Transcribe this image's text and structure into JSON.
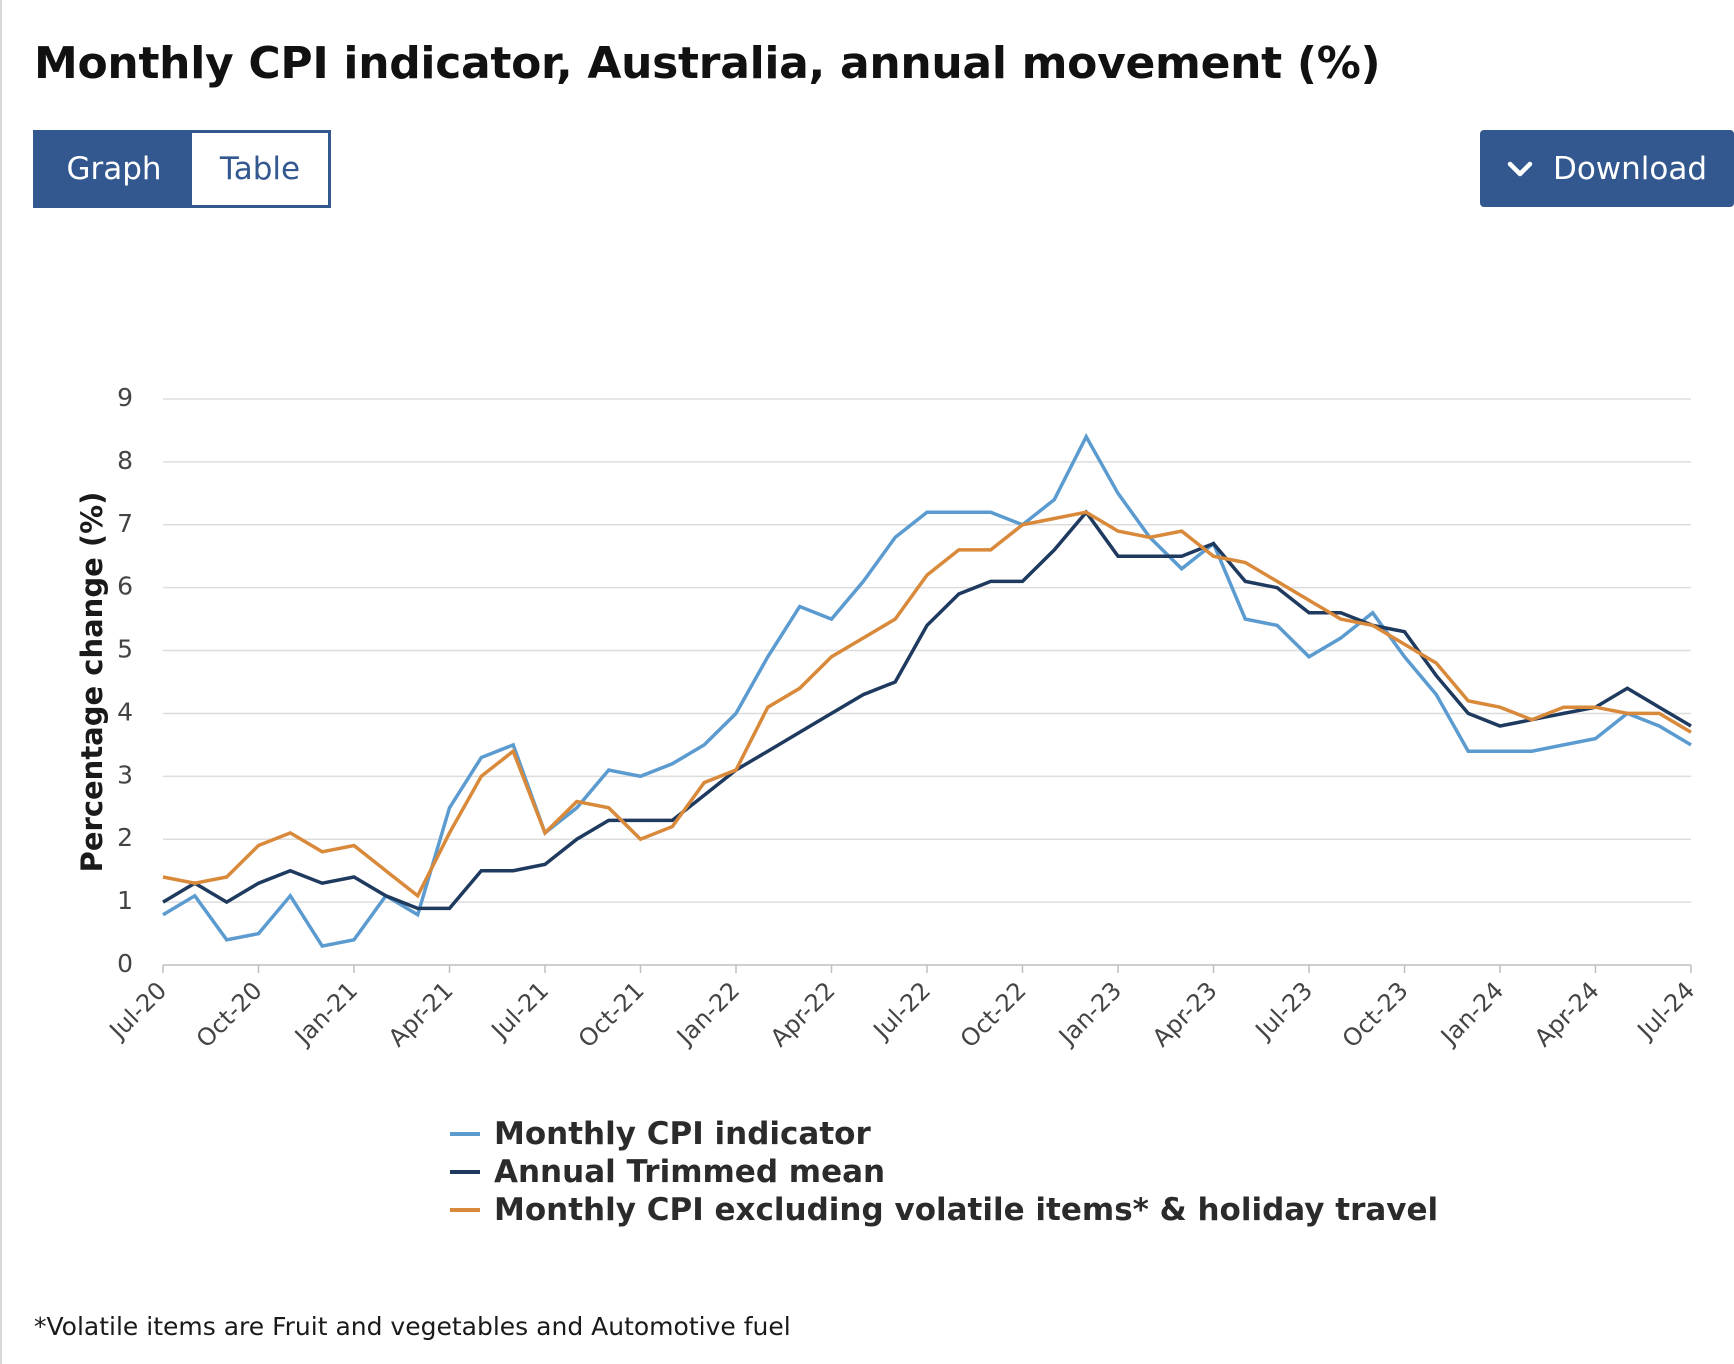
{
  "header": {
    "title": "Monthly CPI indicator, Australia, annual movement (%)"
  },
  "tabs": [
    {
      "label": "Graph",
      "selected": true
    },
    {
      "label": "Table",
      "selected": false
    }
  ],
  "toolbar": {
    "download_label": "Download",
    "download_icon": "chevron-down-icon"
  },
  "colors": {
    "accent": "#33588f",
    "series_light_blue": "#5b9bd0",
    "series_navy": "#1f3a5f",
    "series_orange": "#d9893a",
    "grid": "#dddddd"
  },
  "footnote": "*Volatile items are Fruit and vegetables and Automotive fuel",
  "chart_data": {
    "type": "line",
    "title": "Monthly CPI indicator, Australia, annual movement (%)",
    "xlabel": "",
    "ylabel": "Percentage change (%)",
    "ylim": [
      0,
      9
    ],
    "yticks": [
      0,
      1,
      2,
      3,
      4,
      5,
      6,
      7,
      8,
      9
    ],
    "grid": true,
    "legend_position": "bottom-center",
    "x": [
      "Jul-20",
      "Aug-20",
      "Sep-20",
      "Oct-20",
      "Nov-20",
      "Dec-20",
      "Jan-21",
      "Feb-21",
      "Mar-21",
      "Apr-21",
      "May-21",
      "Jun-21",
      "Jul-21",
      "Aug-21",
      "Sep-21",
      "Oct-21",
      "Nov-21",
      "Dec-21",
      "Jan-22",
      "Feb-22",
      "Mar-22",
      "Apr-22",
      "May-22",
      "Jun-22",
      "Jul-22",
      "Aug-22",
      "Sep-22",
      "Oct-22",
      "Nov-22",
      "Dec-22",
      "Jan-23",
      "Feb-23",
      "Mar-23",
      "Apr-23",
      "May-23",
      "Jun-23",
      "Jul-23",
      "Aug-23",
      "Sep-23",
      "Oct-23",
      "Nov-23",
      "Dec-23",
      "Jan-24",
      "Feb-24",
      "Mar-24",
      "Apr-24",
      "May-24",
      "Jun-24",
      "Jul-24"
    ],
    "xtick_labels": [
      "Jul-20",
      "Oct-20",
      "Jan-21",
      "Apr-21",
      "Jul-21",
      "Oct-21",
      "Jan-22",
      "Apr-22",
      "Jul-22",
      "Oct-22",
      "Jan-23",
      "Apr-23",
      "Jul-23",
      "Oct-23",
      "Jan-24",
      "Apr-24",
      "Jul-24"
    ],
    "series": [
      {
        "name": "Monthly CPI indicator",
        "color": "#5b9bd0",
        "values": [
          0.8,
          1.1,
          0.4,
          0.5,
          1.1,
          0.3,
          0.4,
          1.1,
          0.8,
          2.5,
          3.3,
          3.5,
          2.1,
          2.5,
          3.1,
          3.0,
          3.2,
          3.5,
          4.0,
          4.9,
          5.7,
          5.5,
          6.1,
          6.8,
          7.2,
          7.2,
          7.2,
          7.0,
          7.4,
          8.4,
          7.5,
          6.8,
          6.3,
          6.7,
          5.5,
          5.4,
          4.9,
          5.2,
          5.6,
          4.9,
          4.3,
          3.4,
          3.4,
          3.4,
          3.5,
          3.6,
          4.0,
          3.8,
          3.5
        ]
      },
      {
        "name": "Annual Trimmed mean",
        "color": "#1f3a5f",
        "values": [
          1.0,
          1.3,
          1.0,
          1.3,
          1.5,
          1.3,
          1.4,
          1.1,
          0.9,
          0.9,
          1.5,
          1.5,
          1.6,
          2.0,
          2.3,
          2.3,
          2.3,
          2.7,
          3.1,
          3.4,
          3.7,
          4.0,
          4.3,
          4.5,
          5.4,
          5.9,
          6.1,
          6.1,
          6.6,
          7.2,
          6.5,
          6.5,
          6.5,
          6.7,
          6.1,
          6.0,
          5.6,
          5.6,
          5.4,
          5.3,
          4.6,
          4.0,
          3.8,
          3.9,
          4.0,
          4.1,
          4.4,
          4.1,
          3.8
        ]
      },
      {
        "name": "Monthly CPI excluding volatile items* & holiday travel",
        "color": "#d9893a",
        "values": [
          1.4,
          1.3,
          1.4,
          1.9,
          2.1,
          1.8,
          1.9,
          1.5,
          1.1,
          2.1,
          3.0,
          3.4,
          2.1,
          2.6,
          2.5,
          2.0,
          2.2,
          2.9,
          3.1,
          4.1,
          4.4,
          4.9,
          5.2,
          5.5,
          6.2,
          6.6,
          6.6,
          7.0,
          7.1,
          7.2,
          6.9,
          6.8,
          6.9,
          6.5,
          6.4,
          6.1,
          5.8,
          5.5,
          5.4,
          5.1,
          4.8,
          4.2,
          4.1,
          3.9,
          4.1,
          4.1,
          4.0,
          4.0,
          3.7
        ]
      }
    ]
  }
}
